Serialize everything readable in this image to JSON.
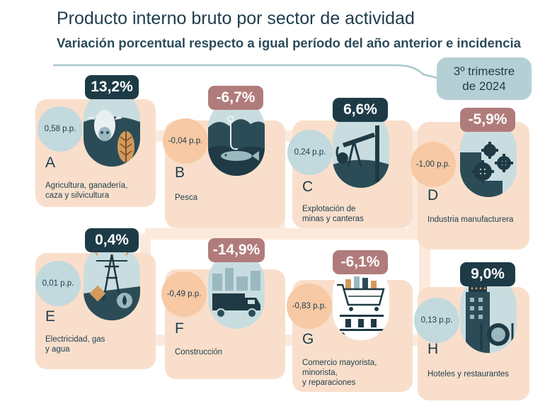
{
  "title": "Producto interno bruto por sector de actividad",
  "subtitle": "Variación porcentual respecto a igual período del año anterior e incidencia",
  "period": {
    "line1": "3º trimestre",
    "line2": "de 2024"
  },
  "colors": {
    "positive_badge": "#1d3b47",
    "negative_badge": "#b07c7b",
    "positive_incidence": "#c2d9de",
    "negative_incidence": "#f7c9a4",
    "card": "#f9dfcb"
  },
  "sectors": [
    {
      "letter": "A",
      "name_lines": [
        "Agricultura, ganadería,",
        "caza y silvicultura"
      ],
      "variation": "13,2%",
      "incidence": "0,58 p.p.",
      "sign": "positive",
      "icon": "cow-wheat-icon"
    },
    {
      "letter": "B",
      "name_lines": [
        "Pesca"
      ],
      "variation": "-6,7%",
      "incidence": "-0,04 p.p.",
      "sign": "negative",
      "icon": "fish-hook-icon"
    },
    {
      "letter": "C",
      "name_lines": [
        "Explotación de",
        "minas y canteras"
      ],
      "variation": "6,6%",
      "incidence": "0,24 p.p.",
      "sign": "positive",
      "icon": "oil-pump-icon"
    },
    {
      "letter": "D",
      "name_lines": [
        "Industria manufacturera"
      ],
      "variation": "-5,9%",
      "incidence": "-1,00 p.p.",
      "sign": "negative",
      "icon": "gears-icon"
    },
    {
      "letter": "E",
      "name_lines": [
        "Electricidad, gas",
        "y agua"
      ],
      "variation": "0,4%",
      "incidence": "0,01 p.p.",
      "sign": "positive",
      "icon": "power-tower-icon"
    },
    {
      "letter": "F",
      "name_lines": [
        "Construcción"
      ],
      "variation": "-14,9%",
      "incidence": "-0,49 p.p.",
      "sign": "negative",
      "icon": "truck-icon"
    },
    {
      "letter": "G",
      "name_lines": [
        "Comercio mayorista,",
        "minorista,",
        "y reparaciones"
      ],
      "variation": "-6,1%",
      "incidence": "-0,83 p.p.",
      "sign": "negative",
      "icon": "shopping-cart-icon"
    },
    {
      "letter": "H",
      "name_lines": [
        "Hoteles y restaurantes"
      ],
      "variation": "9,0%",
      "incidence": "0,13 p.p.",
      "sign": "positive",
      "icon": "hotel-dish-icon"
    }
  ]
}
